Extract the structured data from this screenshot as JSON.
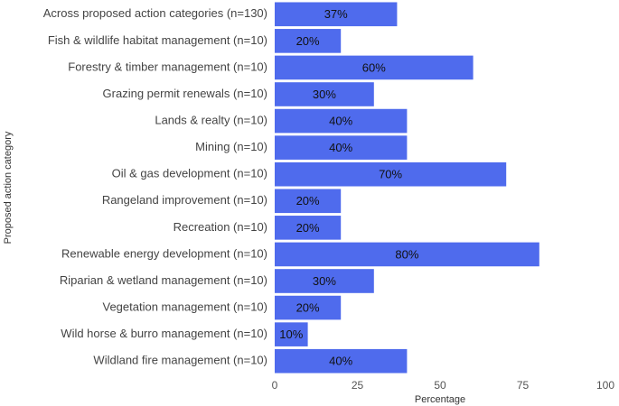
{
  "chart_data": {
    "type": "bar",
    "orientation": "horizontal",
    "color": "#4f6bed",
    "x_label": "Percentage",
    "y_label": "Proposed action category",
    "categories": [
      "Across proposed action categories (n=130)",
      "Fish & wildlife habitat management (n=10)",
      "Forestry & timber management (n=10)",
      "Grazing permit renewals (n=10)",
      "Lands & realty (n=10)",
      "Mining (n=10)",
      "Oil & gas development (n=10)",
      "Rangeland improvement (n=10)",
      "Recreation (n=10)",
      "Renewable energy development (n=10)",
      "Riparian & wetland management (n=10)",
      "Vegetation management (n=10)",
      "Wild horse & burro management (n=10)",
      "Wildland fire management (n=10)"
    ],
    "values": [
      37,
      20,
      60,
      30,
      40,
      40,
      70,
      20,
      20,
      80,
      30,
      20,
      10,
      40
    ],
    "value_labels": [
      "37%",
      "20%",
      "60%",
      "30%",
      "40%",
      "40%",
      "70%",
      "20%",
      "20%",
      "80%",
      "30%",
      "20%",
      "10%",
      "40%"
    ],
    "xlim": [
      0,
      100
    ],
    "xticks": [
      0,
      25,
      50,
      75,
      100
    ],
    "grid": false
  }
}
